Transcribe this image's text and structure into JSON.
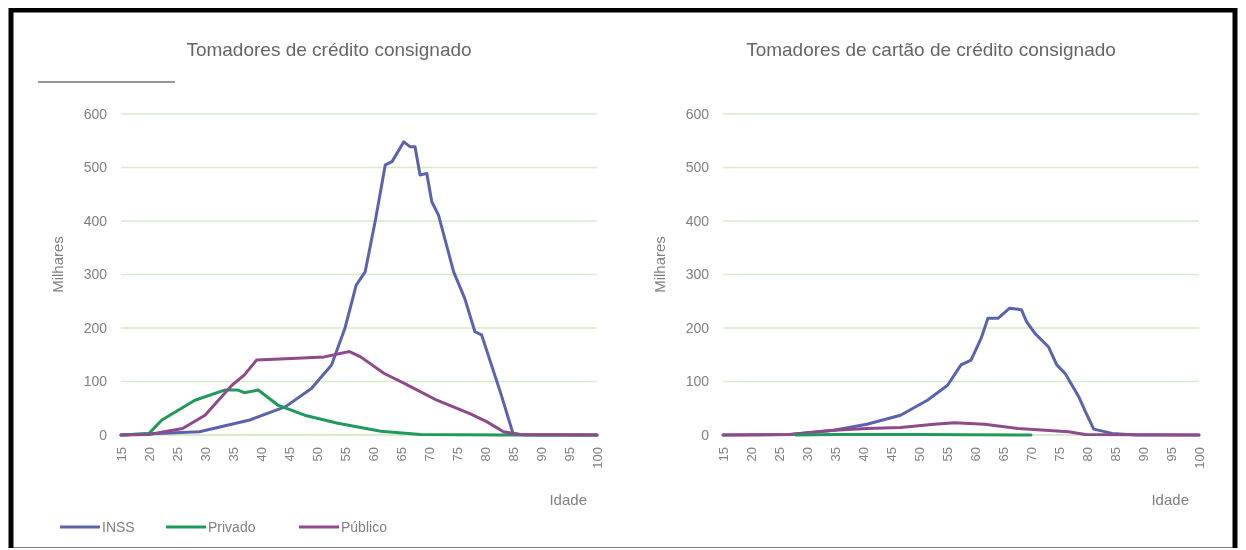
{
  "chart_data": [
    {
      "type": "line",
      "title": "Tomadores de crédito consignado",
      "xlabel": "Idade",
      "ylabel": "Milhares",
      "xlim": [
        15,
        100
      ],
      "xticks": [
        15,
        20,
        25,
        30,
        35,
        40,
        45,
        50,
        55,
        60,
        65,
        70,
        75,
        80,
        85,
        90,
        95,
        100
      ],
      "ylim": [
        0,
        600
      ],
      "yticks": [
        0,
        100,
        200,
        300,
        400,
        500,
        600
      ],
      "grid": "y",
      "legend": "bottom",
      "series": [
        {
          "name": "INSS",
          "color": "#5b63ae",
          "x": [
            15,
            29,
            38,
            44.4,
            49,
            52.6,
            55,
            57,
            58.6,
            60.4,
            62.2,
            63.4,
            65.5,
            66.6,
            67.5,
            68.4,
            69.6,
            70.5,
            71.7,
            74.4,
            76.4,
            78.2,
            79.4,
            82.9,
            85,
            87,
            100
          ],
          "values": [
            0,
            6,
            28,
            53,
            87,
            131,
            200,
            280,
            305,
            400,
            505,
            511,
            548,
            539,
            539,
            486,
            489,
            436,
            411,
            305,
            255,
            193,
            187,
            75,
            3,
            0,
            0
          ]
        },
        {
          "name": "Privado",
          "color": "#1f9a5a",
          "x": [
            15,
            20,
            22.3,
            28.2,
            33.5,
            35.9,
            37,
            39.5,
            43,
            47.8,
            53.7,
            61.4,
            68.5,
            83,
            100
          ],
          "values": [
            0,
            3,
            28,
            65,
            84,
            84,
            79,
            84,
            56,
            37,
            22,
            7,
            1,
            0,
            0
          ]
        },
        {
          "name": "Público",
          "color": "#8e4a8a",
          "x": [
            15,
            20,
            26,
            30,
            34.8,
            37,
            39.2,
            45.4,
            51.3,
            55.8,
            57.8,
            62,
            65.5,
            71.4,
            77.3,
            80.3,
            83.3,
            86.2,
            100
          ],
          "values": [
            0,
            1,
            12,
            37,
            93,
            112,
            140,
            143,
            146,
            156,
            146,
            115,
            97,
            65,
            40,
            25,
            6,
            1,
            0
          ]
        }
      ]
    },
    {
      "type": "line",
      "title": "Tomadores de cartão de crédito consignado",
      "xlabel": "Idade",
      "ylabel": "Milhares",
      "xlim": [
        15,
        100
      ],
      "xticks": [
        15,
        20,
        25,
        30,
        35,
        40,
        45,
        50,
        55,
        60,
        65,
        70,
        75,
        80,
        85,
        90,
        95,
        100
      ],
      "ylim": [
        0,
        600
      ],
      "yticks": [
        0,
        100,
        200,
        300,
        400,
        500,
        600
      ],
      "grid": "y",
      "series": [
        {
          "color": "#5b63ae",
          "x": [
            15,
            27,
            34.8,
            40.7,
            46.7,
            51.5,
            55.1,
            57.5,
            59.3,
            61.1,
            62.3,
            64.1,
            66.2,
            68.3,
            69.2,
            70.7,
            73.1,
            74.6,
            76.1,
            78.5,
            79.7,
            81.2,
            84.5,
            88.7,
            100
          ],
          "values": [
            0,
            1,
            9,
            20,
            37,
            65,
            93,
            131,
            140,
            181,
            218,
            218,
            237,
            234,
            212,
            190,
            165,
            131,
            115,
            72,
            44,
            11,
            3,
            0,
            0
          ]
        },
        {
          "color": "#8e4a8a",
          "x": [
            15,
            27,
            34.8,
            40.7,
            46.7,
            52.7,
            56.3,
            61.7,
            67.7,
            76.7,
            79.7,
            100
          ],
          "values": [
            0,
            1,
            9,
            12,
            14,
            20,
            23,
            20,
            12,
            6,
            1,
            0
          ]
        },
        {
          "color": "#1f9a5a",
          "x": [
            28,
            35,
            50,
            70
          ],
          "values": [
            0,
            1,
            1,
            0
          ]
        }
      ]
    }
  ]
}
